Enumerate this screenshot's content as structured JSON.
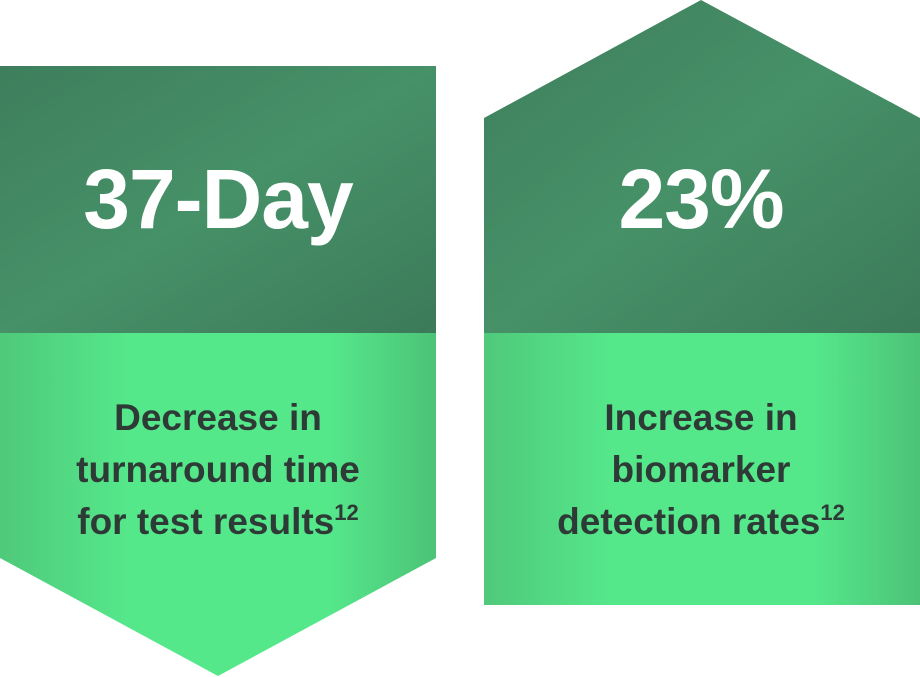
{
  "cards": [
    {
      "stat": "37-Day",
      "description": [
        "Decrease in",
        "turnaround time",
        "for test results"
      ],
      "reference": "12"
    },
    {
      "stat": "23%",
      "description": [
        "Increase in",
        "biomarker",
        "detection rates"
      ],
      "reference": "12"
    }
  ]
}
